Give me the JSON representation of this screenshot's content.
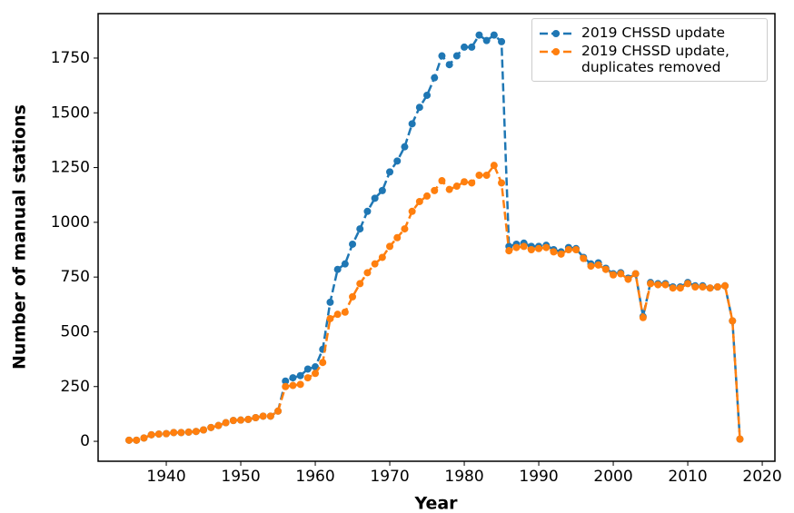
{
  "chart_data": {
    "type": "line",
    "xlabel": "Year",
    "ylabel": "Number of manual stations",
    "x": [
      1935,
      1936,
      1937,
      1938,
      1939,
      1940,
      1941,
      1942,
      1943,
      1944,
      1945,
      1946,
      1947,
      1948,
      1949,
      1950,
      1951,
      1952,
      1953,
      1954,
      1955,
      1956,
      1957,
      1958,
      1959,
      1960,
      1961,
      1962,
      1963,
      1964,
      1965,
      1966,
      1967,
      1968,
      1969,
      1970,
      1971,
      1972,
      1973,
      1974,
      1975,
      1976,
      1977,
      1978,
      1979,
      1980,
      1981,
      1982,
      1983,
      1984,
      1985,
      1986,
      1987,
      1988,
      1989,
      1990,
      1991,
      1992,
      1993,
      1994,
      1995,
      1996,
      1997,
      1998,
      1999,
      2000,
      2001,
      2002,
      2003,
      2004,
      2005,
      2006,
      2007,
      2008,
      2009,
      2010,
      2011,
      2012,
      2013,
      2014,
      2015,
      2016,
      2017
    ],
    "series": [
      {
        "name": "2019 CHSSD update",
        "color": "#1f77b4",
        "values": [
          5,
          5,
          15,
          30,
          33,
          35,
          40,
          40,
          42,
          45,
          52,
          63,
          72,
          85,
          95,
          97,
          100,
          108,
          115,
          115,
          138,
          275,
          290,
          300,
          330,
          340,
          420,
          635,
          785,
          810,
          900,
          970,
          1050,
          1110,
          1145,
          1230,
          1280,
          1345,
          1450,
          1525,
          1580,
          1660,
          1760,
          1720,
          1760,
          1800,
          1800,
          1855,
          1830,
          1855,
          1825,
          890,
          900,
          905,
          890,
          890,
          895,
          875,
          865,
          885,
          880,
          840,
          810,
          815,
          790,
          765,
          770,
          745,
          765,
          570,
          725,
          720,
          720,
          705,
          705,
          725,
          710,
          710,
          700,
          705,
          710,
          550,
          10
        ]
      },
      {
        "name": "2019 CHSSD update, duplicates removed",
        "color": "#ff7f0e",
        "values": [
          5,
          5,
          15,
          30,
          33,
          35,
          40,
          40,
          42,
          45,
          52,
          63,
          72,
          85,
          95,
          97,
          100,
          108,
          115,
          115,
          138,
          250,
          255,
          260,
          290,
          310,
          360,
          560,
          580,
          590,
          660,
          720,
          770,
          810,
          840,
          890,
          930,
          970,
          1050,
          1095,
          1120,
          1145,
          1190,
          1150,
          1165,
          1185,
          1180,
          1215,
          1215,
          1260,
          1180,
          870,
          885,
          890,
          875,
          880,
          885,
          865,
          855,
          875,
          875,
          835,
          800,
          805,
          785,
          760,
          765,
          740,
          765,
          565,
          720,
          715,
          715,
          700,
          700,
          720,
          705,
          705,
          700,
          705,
          710,
          550,
          10
        ]
      }
    ],
    "xlim": [
      1930.85,
      2021.7
    ],
    "xticks": [
      1940,
      1950,
      1960,
      1970,
      1980,
      1990,
      2000,
      2010,
      2020
    ],
    "ylim": [
      -91,
      1953
    ],
    "yticks": [
      0,
      250,
      500,
      750,
      1000,
      1250,
      1500,
      1750
    ],
    "legend": "upper right"
  }
}
